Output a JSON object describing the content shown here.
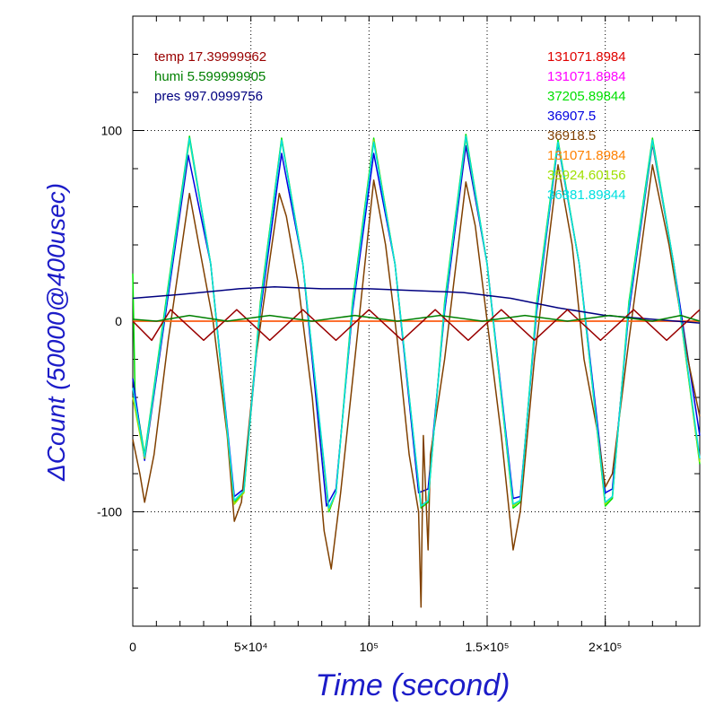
{
  "chart_data": {
    "type": "line",
    "xlabel": "Time (second)",
    "ylabel": "ΔCount (50000@400usec)",
    "xlim": [
      0,
      240000
    ],
    "ylim": [
      -160,
      160
    ],
    "grid": true,
    "x_ticks": [
      {
        "value": 0,
        "label": "0"
      },
      {
        "value": 50000,
        "label": "5×10⁴"
      },
      {
        "value": 100000,
        "label": "10⁵"
      },
      {
        "value": 150000,
        "label": "1.5×10⁵"
      },
      {
        "value": 200000,
        "label": "2×10⁵"
      }
    ],
    "y_ticks": [
      {
        "value": 100,
        "label": "100"
      },
      {
        "value": 0,
        "label": "0"
      },
      {
        "value": -100,
        "label": "-100"
      }
    ],
    "annotations_left": [
      {
        "text": "temp 17.39999962",
        "color": "#990000"
      },
      {
        "text": "humi 5.599999905",
        "color": "#008000"
      },
      {
        "text": "pres 997.0999756",
        "color": "#000080"
      }
    ],
    "legend_placement": "top-right",
    "series": [
      {
        "name": "131071.8984",
        "color": "#e00000",
        "values": [
          [
            0,
            0
          ],
          [
            240000,
            0
          ]
        ]
      },
      {
        "name": "131071.8984",
        "color": "#ff00ff",
        "values": [
          [
            0,
            0
          ],
          [
            240000,
            0
          ]
        ]
      },
      {
        "name": "37205.89844",
        "color": "#00e000",
        "values": [
          [
            0,
            25
          ],
          [
            1000,
            -40
          ],
          [
            5000,
            -70
          ],
          [
            14000,
            10
          ],
          [
            24000,
            97
          ],
          [
            33000,
            30
          ],
          [
            43000,
            -95
          ],
          [
            47000,
            -90
          ],
          [
            54000,
            10
          ],
          [
            63000,
            96
          ],
          [
            72000,
            30
          ],
          [
            83000,
            -100
          ],
          [
            86000,
            -90
          ],
          [
            93000,
            10
          ],
          [
            102000,
            96
          ],
          [
            111000,
            30
          ],
          [
            122000,
            -98
          ],
          [
            125000,
            -95
          ],
          [
            132000,
            10
          ],
          [
            141000,
            98
          ],
          [
            150000,
            30
          ],
          [
            161000,
            -98
          ],
          [
            164000,
            -95
          ],
          [
            171000,
            10
          ],
          [
            180000,
            95
          ],
          [
            189000,
            30
          ],
          [
            200000,
            -97
          ],
          [
            203000,
            -93
          ],
          [
            210000,
            10
          ],
          [
            220000,
            96
          ],
          [
            229000,
            30
          ],
          [
            240000,
            -75
          ]
        ]
      },
      {
        "name": "36907.5",
        "color": "#0000e0",
        "values": [
          [
            0,
            -30
          ],
          [
            5000,
            -73
          ],
          [
            14000,
            5
          ],
          [
            23500,
            87
          ],
          [
            33000,
            30
          ],
          [
            43000,
            -92
          ],
          [
            47000,
            -88
          ],
          [
            54000,
            5
          ],
          [
            63000,
            88
          ],
          [
            72000,
            30
          ],
          [
            82000,
            -97
          ],
          [
            86000,
            -88
          ],
          [
            93000,
            5
          ],
          [
            102000,
            88
          ],
          [
            111000,
            30
          ],
          [
            121000,
            -90
          ],
          [
            125000,
            -88
          ],
          [
            132000,
            5
          ],
          [
            141000,
            92
          ],
          [
            150000,
            30
          ],
          [
            161000,
            -93
          ],
          [
            164000,
            -92
          ],
          [
            171000,
            5
          ],
          [
            180000,
            93
          ],
          [
            189000,
            30
          ],
          [
            200000,
            -90
          ],
          [
            203000,
            -88
          ],
          [
            210000,
            5
          ],
          [
            220000,
            93
          ],
          [
            229000,
            30
          ],
          [
            240000,
            -60
          ]
        ]
      },
      {
        "name": "36918.5",
        "color": "#804000",
        "values": [
          [
            0,
            -62
          ],
          [
            3000,
            -80
          ],
          [
            5000,
            -95
          ],
          [
            9000,
            -70
          ],
          [
            15000,
            -10
          ],
          [
            24000,
            67
          ],
          [
            28000,
            40
          ],
          [
            34000,
            0
          ],
          [
            40000,
            -60
          ],
          [
            43000,
            -105
          ],
          [
            46000,
            -95
          ],
          [
            52000,
            -20
          ],
          [
            62000,
            67
          ],
          [
            65000,
            55
          ],
          [
            70000,
            20
          ],
          [
            76000,
            -40
          ],
          [
            81000,
            -110
          ],
          [
            84000,
            -130
          ],
          [
            88000,
            -90
          ],
          [
            94000,
            -20
          ],
          [
            102000,
            74
          ],
          [
            107000,
            40
          ],
          [
            112000,
            -10
          ],
          [
            117000,
            -70
          ],
          [
            121000,
            -100
          ],
          [
            122000,
            -150
          ],
          [
            123000,
            -60
          ],
          [
            125000,
            -120
          ],
          [
            126000,
            -70
          ],
          [
            132000,
            -20
          ],
          [
            141000,
            73
          ],
          [
            145000,
            50
          ],
          [
            149000,
            10
          ],
          [
            152000,
            -20
          ],
          [
            156000,
            -60
          ],
          [
            161000,
            -120
          ],
          [
            164000,
            -100
          ],
          [
            170000,
            -20
          ],
          [
            180000,
            82
          ],
          [
            186000,
            40
          ],
          [
            191000,
            -20
          ],
          [
            197000,
            -60
          ],
          [
            200000,
            -87
          ],
          [
            203000,
            -80
          ],
          [
            210000,
            -10
          ],
          [
            220000,
            82
          ],
          [
            227000,
            40
          ],
          [
            235000,
            -20
          ],
          [
            240000,
            -50
          ]
        ]
      },
      {
        "name": "131071.8984",
        "color": "#ff8000",
        "values": [
          [
            0,
            0
          ],
          [
            240000,
            0
          ]
        ]
      },
      {
        "name": "35924.60156",
        "color": "#a0e000",
        "values": [
          [
            0,
            -40
          ],
          [
            5000,
            -72
          ],
          [
            14000,
            8
          ],
          [
            24000,
            95
          ],
          [
            33000,
            30
          ],
          [
            43000,
            -96
          ],
          [
            47000,
            -90
          ],
          [
            54000,
            8
          ],
          [
            63000,
            95
          ],
          [
            72000,
            30
          ],
          [
            83000,
            -99
          ],
          [
            86000,
            -90
          ],
          [
            93000,
            8
          ],
          [
            102000,
            95
          ],
          [
            111000,
            30
          ],
          [
            122000,
            -97
          ],
          [
            125000,
            -94
          ],
          [
            132000,
            8
          ],
          [
            141000,
            96
          ],
          [
            150000,
            30
          ],
          [
            161000,
            -97
          ],
          [
            164000,
            -94
          ],
          [
            171000,
            8
          ],
          [
            180000,
            94
          ],
          [
            189000,
            30
          ],
          [
            200000,
            -96
          ],
          [
            203000,
            -92
          ],
          [
            210000,
            8
          ],
          [
            220000,
            94
          ],
          [
            229000,
            30
          ],
          [
            240000,
            -74
          ]
        ]
      },
      {
        "name": "36881.89844",
        "color": "#00e0e0",
        "values": [
          [
            0,
            -35
          ],
          [
            5000,
            -71
          ],
          [
            14000,
            8
          ],
          [
            24000,
            96
          ],
          [
            33000,
            30
          ],
          [
            43000,
            -94
          ],
          [
            47000,
            -89
          ],
          [
            54000,
            8
          ],
          [
            63000,
            95
          ],
          [
            72000,
            30
          ],
          [
            83000,
            -98
          ],
          [
            86000,
            -90
          ],
          [
            93000,
            8
          ],
          [
            102000,
            94
          ],
          [
            111000,
            30
          ],
          [
            122000,
            -97
          ],
          [
            125000,
            -94
          ],
          [
            132000,
            8
          ],
          [
            141000,
            97
          ],
          [
            150000,
            30
          ],
          [
            161000,
            -96
          ],
          [
            164000,
            -94
          ],
          [
            171000,
            8
          ],
          [
            180000,
            94
          ],
          [
            189000,
            30
          ],
          [
            200000,
            -95
          ],
          [
            203000,
            -92
          ],
          [
            210000,
            8
          ],
          [
            220000,
            95
          ],
          [
            229000,
            30
          ],
          [
            240000,
            -72
          ]
        ]
      },
      {
        "color": "#000080",
        "values": [
          [
            0,
            12
          ],
          [
            20000,
            14
          ],
          [
            45000,
            17
          ],
          [
            60000,
            18
          ],
          [
            80000,
            17
          ],
          [
            100000,
            17
          ],
          [
            120000,
            16
          ],
          [
            140000,
            15
          ],
          [
            160000,
            12
          ],
          [
            180000,
            7
          ],
          [
            200000,
            3
          ],
          [
            220000,
            1
          ],
          [
            240000,
            -1
          ]
        ]
      },
      {
        "color": "#990000",
        "values": [
          [
            0,
            0
          ],
          [
            8000,
            -10
          ],
          [
            16000,
            6
          ],
          [
            30000,
            -10
          ],
          [
            44000,
            6
          ],
          [
            58000,
            -10
          ],
          [
            72000,
            6
          ],
          [
            86000,
            -10
          ],
          [
            100000,
            6
          ],
          [
            114000,
            -10
          ],
          [
            128000,
            6
          ],
          [
            142000,
            -10
          ],
          [
            156000,
            6
          ],
          [
            170000,
            -10
          ],
          [
            184000,
            6
          ],
          [
            198000,
            -10
          ],
          [
            212000,
            6
          ],
          [
            226000,
            -10
          ],
          [
            240000,
            6
          ]
        ]
      },
      {
        "color": "#008000",
        "values": [
          [
            0,
            1
          ],
          [
            10000,
            0
          ],
          [
            24000,
            3
          ],
          [
            40000,
            0
          ],
          [
            58000,
            3
          ],
          [
            76000,
            0
          ],
          [
            94000,
            3
          ],
          [
            112000,
            0
          ],
          [
            130000,
            3
          ],
          [
            148000,
            0
          ],
          [
            166000,
            3
          ],
          [
            184000,
            0
          ],
          [
            202000,
            3
          ],
          [
            220000,
            0
          ],
          [
            232000,
            3
          ],
          [
            240000,
            0
          ]
        ]
      }
    ]
  }
}
